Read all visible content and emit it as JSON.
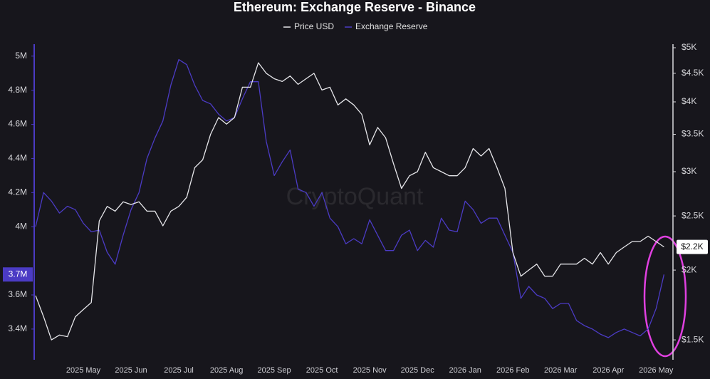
{
  "chart_data": {
    "type": "line",
    "title": "Ethereum: Exchange Reserve - Binance",
    "watermark": "CryptoQuant",
    "categories": [
      null,
      null,
      null,
      null,
      null,
      null,
      "2025 May",
      null,
      null,
      null,
      null,
      null,
      "2025 Jun",
      null,
      null,
      null,
      null,
      null,
      "2025 Jul",
      null,
      null,
      null,
      null,
      null,
      "2025 Aug",
      null,
      null,
      null,
      null,
      null,
      "2025 Sep",
      null,
      null,
      null,
      null,
      null,
      "2025 Oct",
      null,
      null,
      null,
      null,
      null,
      "2025 Nov",
      null,
      null,
      null,
      null,
      null,
      "2025 Dec",
      null,
      null,
      null,
      null,
      null,
      "2026 Jan",
      null,
      null,
      null,
      null,
      null,
      "2026 Feb",
      null,
      null,
      null,
      null,
      null,
      "2026 Mar",
      null,
      null,
      null,
      null,
      null,
      "2026 Apr",
      null,
      null,
      null,
      null,
      null,
      "2026 May",
      null
    ],
    "series": [
      {
        "name": "Price USD",
        "color": "#e6e6ea",
        "axis": "y2",
        "last_label": "$2.2K",
        "values": [
          1800,
          1650,
          1500,
          1530,
          1520,
          1650,
          1700,
          1750,
          2450,
          2600,
          2550,
          2650,
          2620,
          2650,
          2550,
          2550,
          2400,
          2550,
          2600,
          2700,
          3050,
          3150,
          3500,
          3750,
          3650,
          3750,
          4250,
          4250,
          4700,
          4500,
          4400,
          4350,
          4450,
          4300,
          4400,
          4500,
          4200,
          4250,
          3950,
          4050,
          3950,
          3800,
          3350,
          3600,
          3450,
          3100,
          2800,
          2950,
          3000,
          3250,
          3050,
          3000,
          2950,
          2950,
          3050,
          3300,
          3200,
          3300,
          3050,
          2800,
          2150,
          1950,
          2000,
          2050,
          1950,
          1950,
          2050,
          2050,
          2050,
          2100,
          2050,
          2150,
          2050,
          2150,
          2200,
          2250,
          2250,
          2300,
          2250,
          2200
        ]
      },
      {
        "name": "Exchange Reserve",
        "color": "#4b3bc4",
        "last_label": "3.7M",
        "values": [
          4000000,
          4200000,
          4150000,
          4080000,
          4120000,
          4100000,
          4020000,
          3970000,
          3980000,
          3850000,
          3780000,
          3950000,
          4100000,
          4200000,
          4400000,
          4520000,
          4620000,
          4830000,
          4980000,
          4950000,
          4830000,
          4740000,
          4720000,
          4660000,
          4620000,
          4640000,
          4750000,
          4850000,
          4850000,
          4500000,
          4300000,
          4380000,
          4450000,
          4220000,
          4200000,
          4120000,
          4200000,
          4050000,
          4000000,
          3900000,
          3930000,
          3900000,
          4040000,
          3950000,
          3860000,
          3860000,
          3950000,
          3980000,
          3860000,
          3920000,
          3880000,
          4050000,
          3980000,
          3970000,
          4150000,
          4100000,
          4020000,
          4050000,
          4050000,
          3950000,
          3850000,
          3580000,
          3650000,
          3600000,
          3580000,
          3520000,
          3550000,
          3550000,
          3450000,
          3420000,
          3400000,
          3370000,
          3350000,
          3380000,
          3400000,
          3380000,
          3360000,
          3400000,
          3520000,
          3720000
        ]
      }
    ],
    "ylim": [
      3220000,
      5070000
    ],
    "yticks": [
      {
        "value": 3400000,
        "label": "3.4M"
      },
      {
        "value": 3600000,
        "label": "3.6M"
      },
      {
        "value": 4000000,
        "label": "4M"
      },
      {
        "value": 4200000,
        "label": "4.2M"
      },
      {
        "value": 4400000,
        "label": "4.4M"
      },
      {
        "value": 4600000,
        "label": "4.6M"
      },
      {
        "value": 4800000,
        "label": "4.8M"
      },
      {
        "value": 5000000,
        "label": "5M"
      }
    ],
    "y2lim": [
      1382,
      5074
    ],
    "y2_log": true,
    "y2ticks": [
      {
        "value": 1500,
        "label": "$1.5K"
      },
      {
        "value": 2000,
        "label": "$2K"
      },
      {
        "value": 2500,
        "label": "$2.5K"
      },
      {
        "value": 3000,
        "label": "$3K"
      },
      {
        "value": 3500,
        "label": "$3.5K"
      },
      {
        "value": 4000,
        "label": "$4K"
      },
      {
        "value": 4500,
        "label": "$4.5K"
      },
      {
        "value": 5000,
        "label": "$5K"
      }
    ],
    "grid": false
  }
}
